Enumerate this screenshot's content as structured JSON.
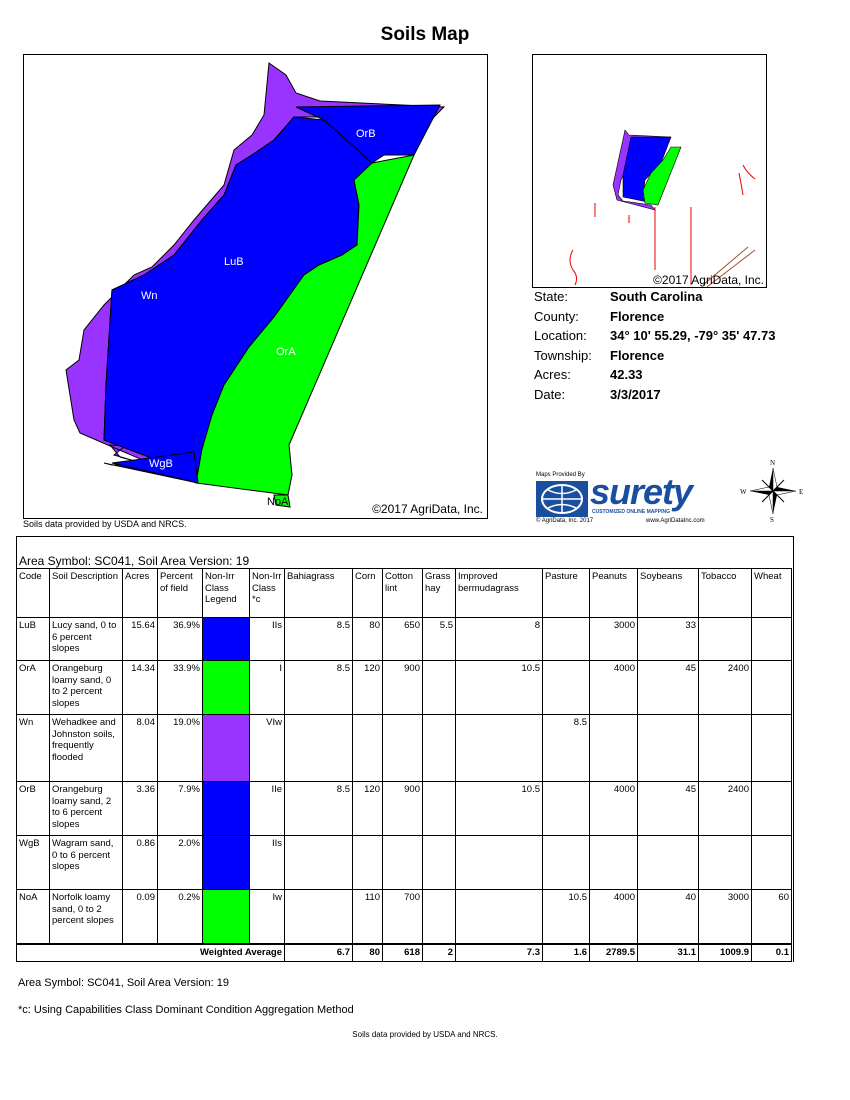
{
  "page": {
    "title": "Soils Map"
  },
  "main_map": {
    "copyright": "©2017 AgriData, Inc.",
    "source": "Soils data provided by USDA and NRCS.",
    "labels": {
      "OrB": "OrB",
      "LuB": "LuB",
      "Wn": "Wn",
      "OrA": "OrA",
      "WgB": "WgB",
      "NoA": "NoA"
    }
  },
  "inset_map": {
    "copyright": "©2017 AgriData, Inc."
  },
  "info": [
    {
      "label": "State:",
      "value": "South Carolina"
    },
    {
      "label": "County:",
      "value": "Florence"
    },
    {
      "label": "Location:",
      "value": "34° 10' 55.29,  -79° 35' 47.73"
    },
    {
      "label": "Township:",
      "value": "Florence"
    },
    {
      "label": "Acres:",
      "value": "42.33"
    },
    {
      "label": "Date:",
      "value": "3/3/2017"
    }
  ],
  "logo": {
    "provided_by": "Maps Provided By",
    "brand": "surety",
    "tagline": "CUSTOMIZED ONLINE MAPPING",
    "copyright": "© AgriData, Inc. 2017",
    "url": "www.AgriDataInc.com"
  },
  "compass": {
    "n": "N",
    "s": "S",
    "e": "E",
    "w": "W"
  },
  "colors": {
    "blue": "#0000ff",
    "green": "#00ff00",
    "purple": "#9933ff"
  },
  "table": {
    "area_symbol": "Area Symbol: SC041, Soil Area Version: 19",
    "headers": [
      "Code",
      "Soil Description",
      "Acres",
      "Percent of field",
      "Non-Irr Class Legend",
      "Non-Irr Class *c",
      "Bahiagrass",
      "Corn",
      "Cotton lint",
      "Grass hay",
      "Improved bermudagrass",
      "Pasture",
      "Peanuts",
      "Soybeans",
      "Tobacco",
      "Wheat"
    ],
    "rows": [
      {
        "code": "LuB",
        "desc": "Lucy sand, 0 to 6 percent slopes",
        "acres": "15.64",
        "pct": "36.9%",
        "legend": "#0000ff",
        "cls": "IIs",
        "bahia": "8.5",
        "corn": "80",
        "cotton": "650",
        "hay": "5.5",
        "bermuda": "8",
        "pasture": "",
        "peanuts": "3000",
        "soy": "33",
        "tobacco": "",
        "wheat": ""
      },
      {
        "code": "OrA",
        "desc": "Orangeburg loamy sand, 0 to 2 percent slopes",
        "acres": "14.34",
        "pct": "33.9%",
        "legend": "#00ff00",
        "cls": "I",
        "bahia": "8.5",
        "corn": "120",
        "cotton": "900",
        "hay": "",
        "bermuda": "10.5",
        "pasture": "",
        "peanuts": "4000",
        "soy": "45",
        "tobacco": "2400",
        "wheat": ""
      },
      {
        "code": "Wn",
        "desc": "Wehadkee and Johnston soils, frequently flooded",
        "acres": "8.04",
        "pct": "19.0%",
        "legend": "#9933ff",
        "cls": "VIw",
        "bahia": "",
        "corn": "",
        "cotton": "",
        "hay": "",
        "bermuda": "",
        "pasture": "8.5",
        "peanuts": "",
        "soy": "",
        "tobacco": "",
        "wheat": ""
      },
      {
        "code": "OrB",
        "desc": "Orangeburg loamy sand, 2 to 6 percent slopes",
        "acres": "3.36",
        "pct": "7.9%",
        "legend": "#0000ff",
        "cls": "IIe",
        "bahia": "8.5",
        "corn": "120",
        "cotton": "900",
        "hay": "",
        "bermuda": "10.5",
        "pasture": "",
        "peanuts": "4000",
        "soy": "45",
        "tobacco": "2400",
        "wheat": ""
      },
      {
        "code": "WgB",
        "desc": "Wagram sand, 0 to 6 percent slopes",
        "acres": "0.86",
        "pct": "2.0%",
        "legend": "#0000ff",
        "cls": "IIs",
        "bahia": "",
        "corn": "",
        "cotton": "",
        "hay": "",
        "bermuda": "",
        "pasture": "",
        "peanuts": "",
        "soy": "",
        "tobacco": "",
        "wheat": ""
      },
      {
        "code": "NoA",
        "desc": "Norfolk loamy sand, 0 to 2 percent slopes",
        "acres": "0.09",
        "pct": "0.2%",
        "legend": "#00ff00",
        "cls": "Iw",
        "bahia": "",
        "corn": "110",
        "cotton": "700",
        "hay": "",
        "bermuda": "",
        "pasture": "10.5",
        "peanuts": "4000",
        "soy": "40",
        "tobacco": "3000",
        "wheat": "60"
      }
    ],
    "weighted": {
      "label": "Weighted Average",
      "bahia": "6.7",
      "corn": "80",
      "cotton": "618",
      "hay": "2",
      "bermuda": "7.3",
      "pasture": "1.6",
      "peanuts": "2789.5",
      "soy": "31.1",
      "tobacco": "1009.9",
      "wheat": "0.1"
    }
  },
  "notes": {
    "area_symbol": "Area Symbol: SC041, Soil Area Version: 19",
    "footnote": "*c:  Using Capabilities Class Dominant Condition Aggregation Method",
    "footer": "Soils data provided by USDA and NRCS."
  }
}
